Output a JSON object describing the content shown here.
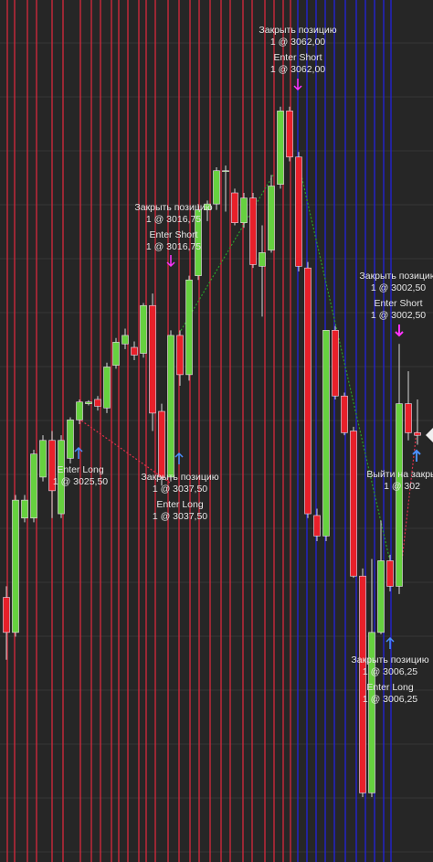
{
  "chart_data": {
    "type": "candlestick",
    "up_color": "#66d13f",
    "down_color": "#e8202a",
    "ylim": [
      2974,
      3075
    ],
    "candles": [
      {
        "open": 3005.0,
        "high": 3006.3,
        "low": 2997.7,
        "close": 3000.9
      },
      {
        "open": 3000.9,
        "high": 3017.0,
        "low": 3000.4,
        "close": 3016.4
      },
      {
        "open": 3014.3,
        "high": 3017.0,
        "low": 3013.8,
        "close": 3016.4
      },
      {
        "open": 3014.3,
        "high": 3022.3,
        "low": 3013.8,
        "close": 3021.8
      },
      {
        "open": 3019.1,
        "high": 3024.0,
        "low": 3018.6,
        "close": 3023.4
      },
      {
        "open": 3023.4,
        "high": 3024.5,
        "low": 3014.3,
        "close": 3017.5
      },
      {
        "open": 3014.8,
        "high": 3024.0,
        "low": 3014.3,
        "close": 3023.4
      },
      {
        "open": 3021.3,
        "high": 3026.1,
        "low": 3020.7,
        "close": 3025.8
      },
      {
        "open": 3025.8,
        "high": 3028.2,
        "low": 3025.3,
        "close": 3027.9
      },
      {
        "open": 3027.7,
        "high": 3028.1,
        "low": 3027.5,
        "close": 3027.9
      },
      {
        "open": 3028.2,
        "high": 3028.6,
        "low": 3026.9,
        "close": 3027.4
      },
      {
        "open": 3027.2,
        "high": 3032.5,
        "low": 3026.6,
        "close": 3032.0
      },
      {
        "open": 3032.2,
        "high": 3035.4,
        "low": 3031.8,
        "close": 3034.9
      },
      {
        "open": 3034.7,
        "high": 3036.5,
        "low": 3034.1,
        "close": 3035.7
      },
      {
        "open": 3034.3,
        "high": 3035.0,
        "low": 3032.8,
        "close": 3033.4
      },
      {
        "open": 3033.6,
        "high": 3039.5,
        "low": 3033.1,
        "close": 3039.2
      },
      {
        "open": 3039.2,
        "high": 3040.6,
        "low": 3024.5,
        "close": 3026.6
      },
      {
        "open": 3026.8,
        "high": 3027.7,
        "low": 3018.1,
        "close": 3019.1
      },
      {
        "open": 3019.1,
        "high": 3036.3,
        "low": 3018.6,
        "close": 3035.7
      },
      {
        "open": 3035.7,
        "high": 3036.3,
        "low": 3029.8,
        "close": 3031.1
      },
      {
        "open": 3031.1,
        "high": 3042.7,
        "low": 3030.4,
        "close": 3042.2
      },
      {
        "open": 3042.7,
        "high": 3051.1,
        "low": 3042.2,
        "close": 3050.4
      },
      {
        "open": 3050.4,
        "high": 3051.5,
        "low": 3049.1,
        "close": 3051.1
      },
      {
        "open": 3051.1,
        "high": 3055.4,
        "low": 3050.4,
        "close": 3055.0
      },
      {
        "open": 3054.9,
        "high": 3055.6,
        "low": 3050.2,
        "close": 3055.0
      },
      {
        "open": 3052.4,
        "high": 3052.9,
        "low": 3048.6,
        "close": 3048.9
      },
      {
        "open": 3048.9,
        "high": 3052.4,
        "low": 3048.3,
        "close": 3051.8
      },
      {
        "open": 3051.8,
        "high": 3052.4,
        "low": 3043.6,
        "close": 3044.0
      },
      {
        "open": 3043.8,
        "high": 3048.6,
        "low": 3037.9,
        "close": 3045.4
      },
      {
        "open": 3045.7,
        "high": 3054.5,
        "low": 3045.4,
        "close": 3053.2
      },
      {
        "open": 3053.4,
        "high": 3062.5,
        "low": 3052.9,
        "close": 3062.0
      },
      {
        "open": 3062.0,
        "high": 3062.5,
        "low": 3056.1,
        "close": 3056.6
      },
      {
        "open": 3056.6,
        "high": 3057.2,
        "low": 3043.2,
        "close": 3043.8
      },
      {
        "open": 3043.6,
        "high": 3044.3,
        "low": 3014.3,
        "close": 3014.8
      },
      {
        "open": 3014.6,
        "high": 3015.4,
        "low": 3011.6,
        "close": 3012.2
      },
      {
        "open": 3012.2,
        "high": 3036.3,
        "low": 3011.6,
        "close": 3036.3
      },
      {
        "open": 3036.3,
        "high": 3036.8,
        "low": 3028.2,
        "close": 3028.6
      },
      {
        "open": 3028.6,
        "high": 3029.0,
        "low": 3024.0,
        "close": 3024.3
      },
      {
        "open": 3024.5,
        "high": 3025.0,
        "low": 3007.3,
        "close": 3007.5
      },
      {
        "open": 3007.5,
        "high": 3008.4,
        "low": 2981.6,
        "close": 2982.1
      },
      {
        "open": 2982.1,
        "high": 3009.5,
        "low": 2981.6,
        "close": 3000.9
      },
      {
        "open": 3000.9,
        "high": 3014.0,
        "low": 3000.7,
        "close": 3009.3
      },
      {
        "open": 3009.3,
        "high": 3010.0,
        "low": 3005.7,
        "close": 3006.3
      },
      {
        "open": 3006.3,
        "high": 3034.7,
        "low": 3005.4,
        "close": 3027.7
      },
      {
        "open": 3027.7,
        "high": 3031.5,
        "low": 3023.4,
        "close": 3024.3
      },
      {
        "open": 3024.3,
        "high": 3028.2,
        "low": 3022.9,
        "close": 3024.0
      }
    ],
    "annotations": [
      [
        "Закрыть позицию",
        "1 @ 3062,00",
        "Enter Short",
        "1 @ 3062,00"
      ],
      [
        "Закрыть позицию",
        "1 @ 3016,75",
        "Enter Short",
        "1 @ 3016,75"
      ],
      [
        "Закрыть позицию",
        "1 @ 3002,50",
        "Enter Short",
        "1 @ 3002,50"
      ],
      [
        "Enter Long",
        "1 @ 3025,50"
      ],
      [
        "Закрыть позицию",
        "1 @ 3037,50",
        "Enter Long",
        "1 @ 3037,50"
      ],
      [
        "Выйти на закры",
        "1 @ 302"
      ],
      [
        "Закрыть позицию",
        "1 @ 3006,25",
        "Enter Long",
        "1 @ 3006,25"
      ]
    ]
  }
}
